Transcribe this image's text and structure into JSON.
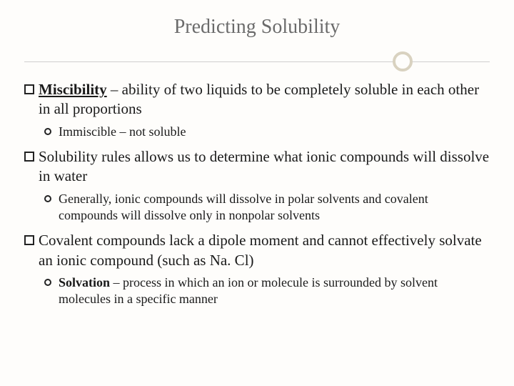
{
  "title": "Predicting Solubility",
  "colors": {
    "title_color": "#6b6b6b",
    "text_color": "#1a1a1a",
    "ring_color": "#d9d2c0",
    "line_color": "#cfcfcf",
    "background": "#fefdfb"
  },
  "typography": {
    "title_fontsize": 28,
    "top_fontsize": 21,
    "sub_fontsize": 18,
    "font_family": "Georgia"
  },
  "item1": {
    "lead": "Miscibility",
    "rest": " – ability of two liquids to be completely soluble in each other in all proportions",
    "sub": "Immiscible – not soluble"
  },
  "item2": {
    "text": "Solubility rules allows us to determine what ionic compounds will dissolve in water",
    "sub": "Generally, ionic compounds will dissolve in polar solvents and covalent compounds will dissolve only in nonpolar solvents"
  },
  "item3": {
    "text": "Covalent compounds lack a dipole moment and cannot effectively solvate an ionic compound (such as Na. Cl)",
    "sub_lead": "Solvation",
    "sub_rest": " – process in which an ion or molecule is surrounded by solvent molecules in a specific manner"
  }
}
